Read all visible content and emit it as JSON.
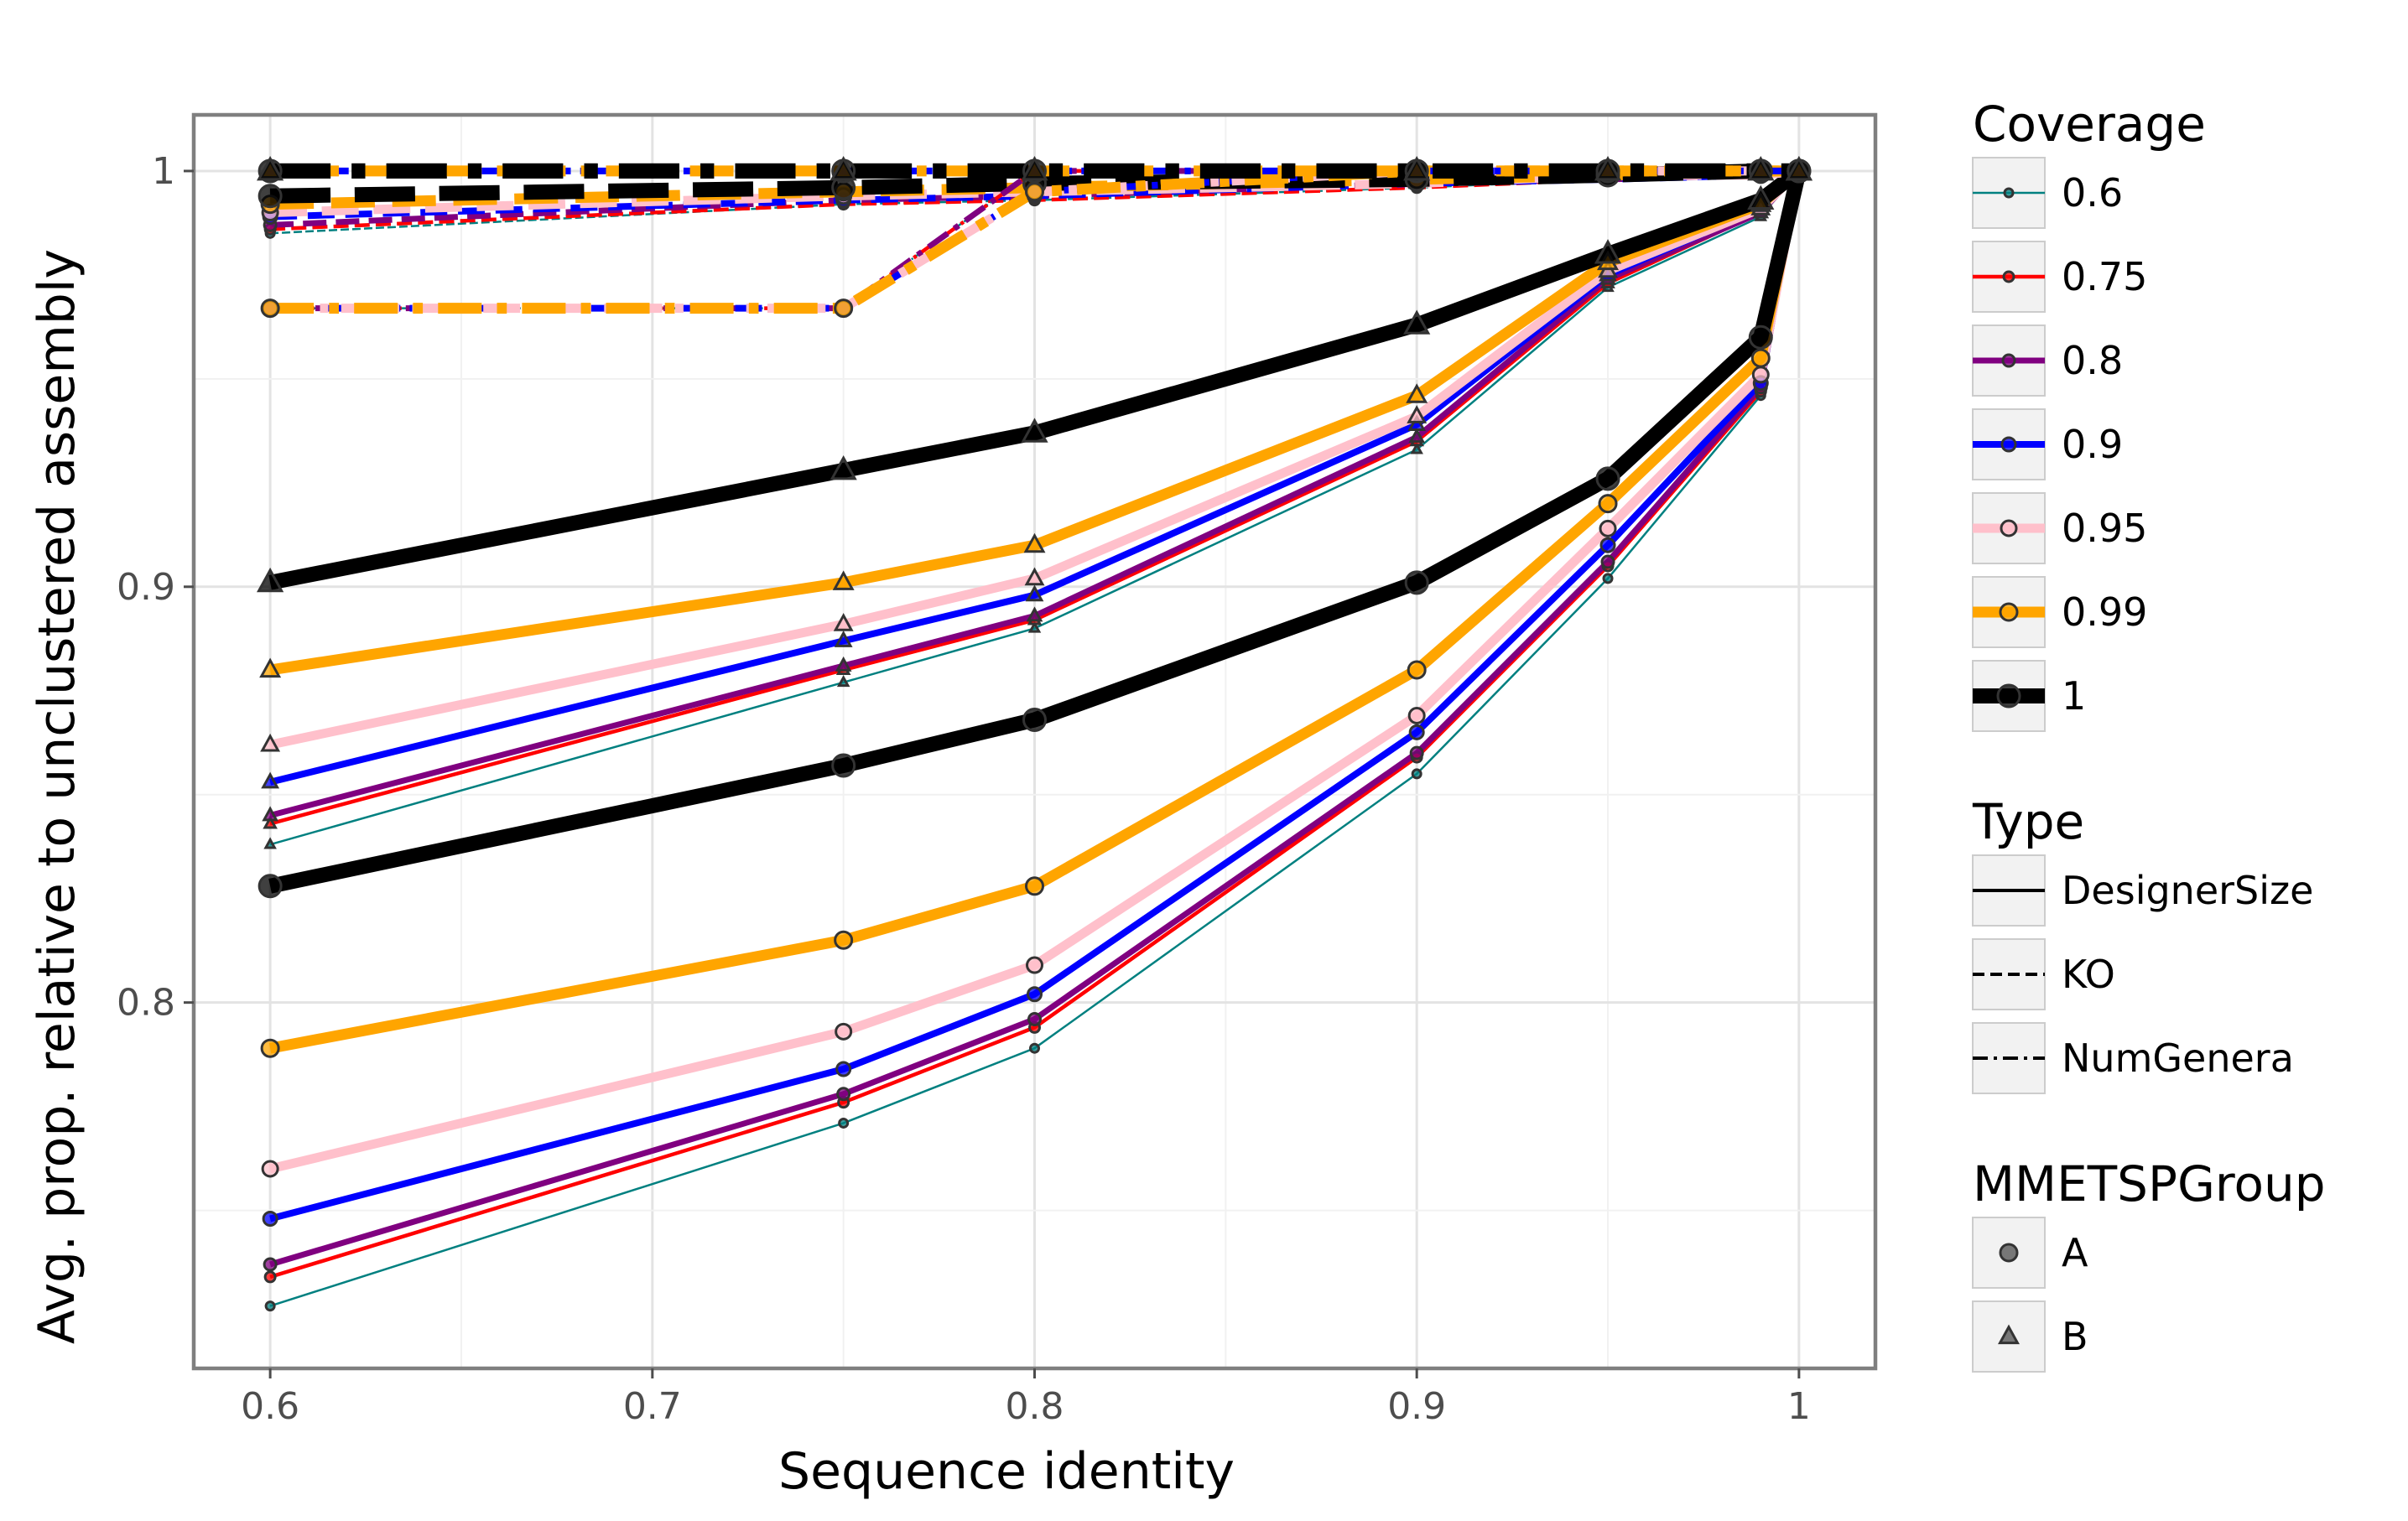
{
  "chart_data": {
    "type": "line",
    "xlabel": "Sequence identity",
    "ylabel": "Avg. prop. relative to unclustered assembly",
    "xlim": [
      0.58,
      1.02
    ],
    "ylim": [
      0.712,
      1.0135
    ],
    "x_ticks": [
      0.6,
      0.7,
      0.8,
      0.9,
      1.0
    ],
    "x_tick_labels": [
      "0.6",
      "0.7",
      "0.8",
      "0.9",
      "1"
    ],
    "y_ticks": [
      0.8,
      0.9,
      1.0
    ],
    "y_tick_labels": [
      "0.8",
      "0.9",
      "1"
    ],
    "grid": true,
    "x": [
      0.6,
      0.75,
      0.8,
      0.9,
      0.95,
      0.99,
      1.0
    ],
    "legends": {
      "coverage": {
        "title": "Coverage",
        "entries": [
          {
            "label": "0.6",
            "color": "#008080"
          },
          {
            "label": "0.75",
            "color": "#ff0000"
          },
          {
            "label": "0.8",
            "color": "#800080"
          },
          {
            "label": "0.9",
            "color": "#0000ff"
          },
          {
            "label": "0.95",
            "color": "#ffc0cb"
          },
          {
            "label": "0.99",
            "color": "#ffa500"
          },
          {
            "label": "1",
            "color": "#000000"
          }
        ]
      },
      "type": {
        "title": "Type",
        "entries": [
          {
            "label": "DesignerSize",
            "linestyle": "solid"
          },
          {
            "label": "KO",
            "linestyle": "dashed"
          },
          {
            "label": "NumGenera",
            "linestyle": "dashdot"
          }
        ]
      },
      "group": {
        "title": "MMETSPGroup",
        "entries": [
          {
            "label": "A",
            "marker": "circle"
          },
          {
            "label": "B",
            "marker": "triangle"
          }
        ]
      }
    },
    "series": [
      {
        "coverage": "0.6",
        "type": "DesignerSize",
        "group": "A",
        "values": [
          0.727,
          0.771,
          0.789,
          0.855,
          0.902,
          0.946,
          1.0
        ]
      },
      {
        "coverage": "0.75",
        "type": "DesignerSize",
        "group": "A",
        "values": [
          0.734,
          0.776,
          0.794,
          0.859,
          0.905,
          0.947,
          1.0
        ]
      },
      {
        "coverage": "0.8",
        "type": "DesignerSize",
        "group": "A",
        "values": [
          0.737,
          0.778,
          0.796,
          0.86,
          0.906,
          0.948,
          1.0
        ]
      },
      {
        "coverage": "0.9",
        "type": "DesignerSize",
        "group": "A",
        "values": [
          0.748,
          0.784,
          0.802,
          0.865,
          0.91,
          0.949,
          1.0
        ]
      },
      {
        "coverage": "0.95",
        "type": "DesignerSize",
        "group": "A",
        "values": [
          0.76,
          0.793,
          0.809,
          0.869,
          0.914,
          0.951,
          1.0
        ]
      },
      {
        "coverage": "0.99",
        "type": "DesignerSize",
        "group": "A",
        "values": [
          0.789,
          0.815,
          0.828,
          0.88,
          0.92,
          0.955,
          1.0
        ]
      },
      {
        "coverage": "1",
        "type": "DesignerSize",
        "group": "A",
        "values": [
          0.828,
          0.857,
          0.868,
          0.901,
          0.926,
          0.96,
          1.0
        ]
      },
      {
        "coverage": "0.6",
        "type": "DesignerSize",
        "group": "B",
        "values": [
          0.838,
          0.877,
          0.89,
          0.933,
          0.972,
          0.989,
          1.0
        ]
      },
      {
        "coverage": "0.75",
        "type": "DesignerSize",
        "group": "B",
        "values": [
          0.843,
          0.88,
          0.892,
          0.935,
          0.973,
          0.99,
          1.0
        ]
      },
      {
        "coverage": "0.8",
        "type": "DesignerSize",
        "group": "B",
        "values": [
          0.845,
          0.881,
          0.893,
          0.936,
          0.974,
          0.99,
          1.0
        ]
      },
      {
        "coverage": "0.9",
        "type": "DesignerSize",
        "group": "B",
        "values": [
          0.853,
          0.887,
          0.898,
          0.939,
          0.975,
          0.991,
          1.0
        ]
      },
      {
        "coverage": "0.95",
        "type": "DesignerSize",
        "group": "B",
        "values": [
          0.862,
          0.891,
          0.902,
          0.941,
          0.976,
          0.991,
          1.0
        ]
      },
      {
        "coverage": "0.99",
        "type": "DesignerSize",
        "group": "B",
        "values": [
          0.88,
          0.901,
          0.91,
          0.946,
          0.978,
          0.992,
          1.0
        ]
      },
      {
        "coverage": "1",
        "type": "DesignerSize",
        "group": "B",
        "values": [
          0.901,
          0.928,
          0.937,
          0.963,
          0.98,
          0.993,
          1.0
        ]
      },
      {
        "coverage": "0.6",
        "type": "KO",
        "group": "A",
        "values": [
          0.985,
          0.992,
          0.993,
          0.996,
          0.998,
          0.999,
          1.0
        ]
      },
      {
        "coverage": "0.75",
        "type": "KO",
        "group": "A",
        "values": [
          0.986,
          0.992,
          0.993,
          0.996,
          0.998,
          0.999,
          1.0
        ]
      },
      {
        "coverage": "0.8",
        "type": "KO",
        "group": "A",
        "values": [
          0.987,
          0.993,
          0.994,
          0.997,
          0.998,
          0.999,
          1.0
        ]
      },
      {
        "coverage": "0.9",
        "type": "KO",
        "group": "A",
        "values": [
          0.989,
          0.993,
          0.994,
          0.997,
          0.998,
          0.999,
          1.0
        ]
      },
      {
        "coverage": "0.95",
        "type": "KO",
        "group": "A",
        "values": [
          0.99,
          0.994,
          0.995,
          0.997,
          0.999,
          0.999,
          1.0
        ]
      },
      {
        "coverage": "0.99",
        "type": "KO",
        "group": "A",
        "values": [
          0.992,
          0.995,
          0.996,
          0.998,
          0.999,
          1.0,
          1.0
        ]
      },
      {
        "coverage": "1",
        "type": "KO",
        "group": "A",
        "values": [
          0.994,
          0.996,
          0.997,
          0.998,
          0.999,
          1.0,
          1.0
        ]
      },
      {
        "coverage": "0.6",
        "type": "NumGenera",
        "group": "A",
        "values": [
          0.967,
          0.967,
          1.0,
          1.0,
          1.0,
          1.0,
          1.0
        ]
      },
      {
        "coverage": "0.75",
        "type": "NumGenera",
        "group": "A",
        "values": [
          0.967,
          0.967,
          1.0,
          1.0,
          1.0,
          1.0,
          1.0
        ]
      },
      {
        "coverage": "0.8",
        "type": "NumGenera",
        "group": "A",
        "values": [
          0.967,
          0.967,
          1.0,
          1.0,
          1.0,
          1.0,
          1.0
        ]
      },
      {
        "coverage": "0.9",
        "type": "NumGenera",
        "group": "A",
        "values": [
          0.967,
          0.967,
          0.995,
          1.0,
          1.0,
          1.0,
          1.0
        ]
      },
      {
        "coverage": "0.95",
        "type": "NumGenera",
        "group": "A",
        "values": [
          0.967,
          0.967,
          0.995,
          1.0,
          1.0,
          1.0,
          1.0
        ]
      },
      {
        "coverage": "0.99",
        "type": "NumGenera",
        "group": "A",
        "values": [
          0.967,
          0.967,
          0.995,
          1.0,
          1.0,
          1.0,
          1.0
        ]
      },
      {
        "coverage": "1",
        "type": "NumGenera",
        "group": "A",
        "values": [
          1.0,
          1.0,
          1.0,
          1.0,
          1.0,
          1.0,
          1.0
        ]
      },
      {
        "coverage": "0.9",
        "type": "NumGenera",
        "group": "B",
        "values": [
          1.0,
          1.0,
          1.0,
          1.0,
          1.0,
          1.0,
          1.0
        ]
      },
      {
        "coverage": "0.99",
        "type": "NumGenera",
        "group": "B",
        "values": [
          1.0,
          1.0,
          1.0,
          1.0,
          1.0,
          1.0,
          1.0
        ]
      },
      {
        "coverage": "1",
        "type": "NumGenera",
        "group": "B",
        "values": [
          1.0,
          1.0,
          1.0,
          1.0,
          1.0,
          1.0,
          1.0
        ]
      }
    ]
  }
}
